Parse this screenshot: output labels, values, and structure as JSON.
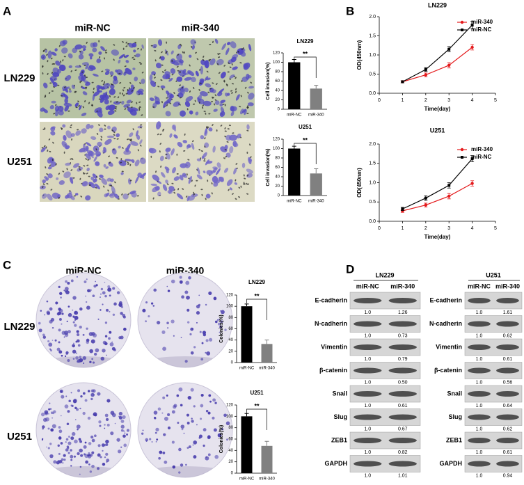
{
  "panel_labels": [
    "A",
    "B",
    "C",
    "D"
  ],
  "invasion": {
    "columns": [
      "miR-NC",
      "miR-340"
    ],
    "rows": [
      "LN229",
      "U251"
    ]
  },
  "colony": {
    "columns": [
      "miR-NC",
      "miR-340"
    ],
    "rows": [
      "LN229",
      "U251"
    ]
  },
  "chart_data": [
    {
      "type": "bar",
      "title": "LN229",
      "y_label": "Cell invasion(%)",
      "categories": [
        "miR-NC",
        "miR-340"
      ],
      "values": [
        100,
        44
      ],
      "errors": [
        6,
        7
      ],
      "colors": [
        "#000000",
        "#808080"
      ],
      "ylim": [
        0,
        120
      ],
      "yticks": [
        0,
        20,
        40,
        60,
        80,
        100,
        120
      ],
      "annotation": "**"
    },
    {
      "type": "bar",
      "title": "U251",
      "y_label": "Cell invasion(%)",
      "categories": [
        "miR-NC",
        "miR-340"
      ],
      "values": [
        100,
        47
      ],
      "errors": [
        5,
        10
      ],
      "colors": [
        "#000000",
        "#808080"
      ],
      "ylim": [
        0,
        120
      ],
      "yticks": [
        0,
        20,
        40,
        60,
        80,
        100,
        120
      ],
      "annotation": "**"
    },
    {
      "type": "line",
      "title": "LN229",
      "x_label": "Time(day)",
      "y_label": "OD(450nm)",
      "x": [
        1,
        2,
        3,
        4
      ],
      "series": [
        {
          "name": "miR-340",
          "color": "#e41a1c",
          "values": [
            0.3,
            0.48,
            0.73,
            1.2
          ],
          "errors": [
            0.03,
            0.05,
            0.07,
            0.07
          ]
        },
        {
          "name": "miR-NC",
          "color": "#000000",
          "values": [
            0.3,
            0.62,
            1.15,
            1.78
          ],
          "errors": [
            0.03,
            0.05,
            0.07,
            0.1
          ]
        }
      ],
      "xlim": [
        0,
        5
      ],
      "xticks": [
        0,
        1,
        2,
        3,
        4,
        5
      ],
      "ylim": [
        0,
        2
      ],
      "yticks": [
        {
          "value": 0,
          "label": "0.0"
        },
        {
          "value": 0.5,
          "label": "0.5"
        },
        {
          "value": 1,
          "label": "1.0"
        },
        {
          "value": 1.5,
          "label": "1.5"
        },
        {
          "value": 2,
          "label": "2.0"
        }
      ],
      "legend": "upper right"
    },
    {
      "type": "line",
      "title": "U251",
      "x_label": "Time(day)",
      "y_label": "OD(450nm)",
      "x": [
        1,
        2,
        3,
        4
      ],
      "series": [
        {
          "name": "miR-340",
          "color": "#e41a1c",
          "values": [
            0.27,
            0.42,
            0.65,
            0.98
          ],
          "errors": [
            0.04,
            0.05,
            0.07,
            0.07
          ]
        },
        {
          "name": "miR-NC",
          "color": "#000000",
          "values": [
            0.32,
            0.6,
            0.93,
            1.62
          ],
          "errors": [
            0.04,
            0.06,
            0.07,
            0.08
          ]
        }
      ],
      "xlim": [
        0,
        5
      ],
      "xticks": [
        0,
        1,
        2,
        3,
        4,
        5
      ],
      "ylim": [
        0,
        2
      ],
      "yticks": [
        {
          "value": 0,
          "label": "0.0"
        },
        {
          "value": 0.5,
          "label": "0.5"
        },
        {
          "value": 1,
          "label": "1.0"
        },
        {
          "value": 1.5,
          "label": "1.5"
        },
        {
          "value": 2,
          "label": "2.0"
        }
      ],
      "legend": "upper right"
    },
    {
      "type": "bar",
      "title": "LN229",
      "y_label": "Colonies(%)",
      "categories": [
        "miR-NC",
        "miR-340"
      ],
      "values": [
        100,
        33
      ],
      "errors": [
        4,
        7
      ],
      "colors": [
        "#000000",
        "#808080"
      ],
      "ylim": [
        0,
        120
      ],
      "yticks": [
        0,
        20,
        40,
        60,
        80,
        100,
        120
      ],
      "annotation": "**"
    },
    {
      "type": "bar",
      "title": "U251",
      "y_label": "Colonies(%)",
      "categories": [
        "miR-NC",
        "miR-340"
      ],
      "values": [
        100,
        48
      ],
      "errors": [
        5,
        8
      ],
      "colors": [
        "#000000",
        "#808080"
      ],
      "ylim": [
        0,
        120
      ],
      "yticks": [
        0,
        20,
        40,
        60,
        80,
        100,
        120
      ],
      "annotation": "**"
    }
  ],
  "western_blot": {
    "blots": [
      {
        "cell_line": "LN229",
        "columns": [
          "miR-NC",
          "miR-340"
        ],
        "rows": [
          {
            "protein": "E-cadherin",
            "values": [
              "1.0",
              "1.26"
            ]
          },
          {
            "protein": "N-cadherin",
            "values": [
              "1.0",
              "0.73"
            ]
          },
          {
            "protein": "Vimentin",
            "values": [
              "1.0",
              "0.79"
            ]
          },
          {
            "protein": "β-catenin",
            "values": [
              "1.0",
              "0.50"
            ]
          },
          {
            "protein": "Snail",
            "values": [
              "1.0",
              "0.61"
            ]
          },
          {
            "protein": "Slug",
            "values": [
              "1.0",
              "0.67"
            ]
          },
          {
            "protein": "ZEB1",
            "values": [
              "1.0",
              "0.82"
            ]
          },
          {
            "protein": "GAPDH",
            "values": [
              "1.0",
              "1.01"
            ]
          }
        ]
      },
      {
        "cell_line": "U251",
        "columns": [
          "miR-NC",
          "miR-340"
        ],
        "rows": [
          {
            "protein": "E-cadherin",
            "values": [
              "1.0",
              "1.61"
            ]
          },
          {
            "protein": "N-cadherin",
            "values": [
              "1.0",
              "0.62"
            ]
          },
          {
            "protein": "Vimentin",
            "values": [
              "1.0",
              "0.61"
            ]
          },
          {
            "protein": "β-catenin",
            "values": [
              "1.0",
              "0.56"
            ]
          },
          {
            "protein": "Snail",
            "values": [
              "1.0",
              "0.64"
            ]
          },
          {
            "protein": "Slug",
            "values": [
              "1.0",
              "0.62"
            ]
          },
          {
            "protein": "ZEB1",
            "values": [
              "1.0",
              "0.61"
            ]
          },
          {
            "protein": "GAPDH",
            "values": [
              "1.0",
              "0.94"
            ]
          }
        ]
      }
    ]
  }
}
